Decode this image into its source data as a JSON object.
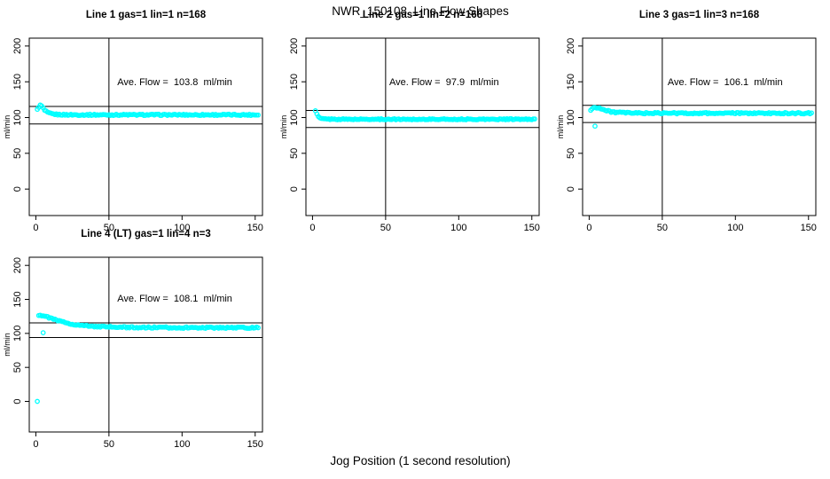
{
  "figure": {
    "title": "NWR_150108  Line Flow Shapes",
    "xlabel": "Jog Position (1 second resolution)",
    "background": "#FFFFFF",
    "point_color": "#00FFFF",
    "axis_color": "#000000"
  },
  "chart_data": [
    {
      "type": "scatter",
      "title": "Line 1 gas=1 lin=1 n=168",
      "ylabel": "ml/min",
      "ave_flow": 103.8,
      "ave_flow_text": "Ave. Flow =  103.8  ml/min",
      "n": 168,
      "x_ticks": [
        0,
        50,
        100,
        150
      ],
      "y_ticks": [
        0,
        50,
        100,
        150,
        200
      ],
      "xlim": [
        -4.5,
        155
      ],
      "ylim": [
        -37,
        211
      ],
      "vline_x": 50,
      "hlines": [
        115.5,
        91
      ],
      "annotation_xy": [
        95,
        150
      ],
      "grid": false,
      "marker": "open-circle",
      "series_profile": [
        [
          1,
          111
        ],
        [
          2,
          115
        ],
        [
          3,
          117
        ],
        [
          4,
          116
        ],
        [
          5,
          113
        ],
        [
          6,
          110
        ],
        [
          8,
          107
        ],
        [
          10,
          105.5
        ],
        [
          14,
          104.3
        ],
        [
          20,
          103.9
        ],
        [
          30,
          103.8
        ],
        [
          152,
          103.8
        ]
      ],
      "x_end": 152,
      "x_step": 1,
      "noise": 0.9,
      "outliers": []
    },
    {
      "type": "scatter",
      "title": "Line 2 gas=1 lin=2 n=168",
      "ylabel": "ml/min",
      "ave_flow": 97.9,
      "ave_flow_text": "Ave. Flow =  97.9  ml/min",
      "n": 168,
      "x_ticks": [
        0,
        50,
        100,
        150
      ],
      "y_ticks": [
        0,
        50,
        100,
        150,
        200
      ],
      "xlim": [
        -4.5,
        155
      ],
      "ylim": [
        -37,
        211
      ],
      "vline_x": 50,
      "hlines": [
        110,
        86
      ],
      "annotation_xy": [
        90,
        150
      ],
      "grid": false,
      "marker": "open-circle",
      "series_profile": [
        [
          2,
          110
        ],
        [
          3,
          105
        ],
        [
          4,
          101
        ],
        [
          5,
          99.2
        ],
        [
          7,
          98.2
        ],
        [
          10,
          97.8
        ],
        [
          20,
          97.6
        ],
        [
          152,
          97.6
        ]
      ],
      "x_end": 152,
      "x_step": 1,
      "noise": 0.7,
      "outliers": []
    },
    {
      "type": "scatter",
      "title": "Line 3 gas=1 lin=3 n=168",
      "ylabel": "ml/min",
      "ave_flow": 106.1,
      "ave_flow_text": "Ave. Flow =  106.1  ml/min",
      "n": 168,
      "x_ticks": [
        0,
        50,
        100,
        150
      ],
      "y_ticks": [
        0,
        50,
        100,
        150,
        200
      ],
      "xlim": [
        -4.5,
        155
      ],
      "ylim": [
        -37,
        211
      ],
      "vline_x": 50,
      "hlines": [
        117,
        93
      ],
      "annotation_xy": [
        93,
        150
      ],
      "grid": false,
      "marker": "open-circle",
      "series_profile": [
        [
          1,
          110
        ],
        [
          2,
          112.5
        ],
        [
          4,
          114
        ],
        [
          6,
          114
        ],
        [
          8,
          112.5
        ],
        [
          11,
          110
        ],
        [
          14,
          108.5
        ],
        [
          18,
          107.3
        ],
        [
          25,
          106.5
        ],
        [
          40,
          106.1
        ],
        [
          152,
          106
        ]
      ],
      "x_end": 152,
      "x_step": 1,
      "noise": 1.0,
      "outliers": [
        [
          4,
          88
        ]
      ]
    },
    {
      "type": "scatter",
      "title": "Line 4 (LT) gas=1 lin=4 n=3",
      "ylabel": "ml/min",
      "ave_flow": 108.1,
      "ave_flow_text": "Ave. Flow =  108.1  ml/min",
      "n": 3,
      "x_ticks": [
        0,
        50,
        100,
        150
      ],
      "y_ticks": [
        0,
        50,
        100,
        150,
        200
      ],
      "xlim": [
        -4.5,
        155
      ],
      "ylim": [
        -45,
        212
      ],
      "vline_x": 50,
      "hlines": [
        115.5,
        94
      ],
      "annotation_xy": [
        95,
        152
      ],
      "grid": false,
      "marker": "open-circle",
      "series_profile": [
        [
          2,
          127
        ],
        [
          4,
          126.5
        ],
        [
          6,
          125.5
        ],
        [
          10,
          122.5
        ],
        [
          14,
          119.5
        ],
        [
          18,
          117
        ],
        [
          24,
          114
        ],
        [
          30,
          112
        ],
        [
          38,
          110.5
        ],
        [
          48,
          109.5
        ],
        [
          60,
          109
        ],
        [
          80,
          108.6
        ],
        [
          152,
          108.4
        ]
      ],
      "x_end": 152,
      "x_step": 1,
      "noise": 1.0,
      "outliers": [
        [
          1,
          0
        ],
        [
          5,
          101
        ]
      ]
    }
  ]
}
